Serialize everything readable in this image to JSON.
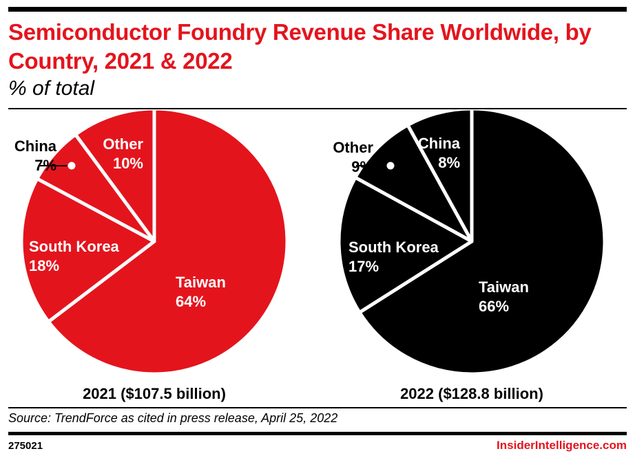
{
  "header": {
    "title": "Semiconductor Foundry Revenue Share Worldwide, by Country, 2021 & 2022",
    "subtitle": "% of total"
  },
  "chart_data": [
    {
      "type": "pie",
      "caption": "2021 ($107.5 billion)",
      "color": "#e4141d",
      "slices": [
        {
          "label": "Taiwan",
          "value": 64,
          "value_label": "64%"
        },
        {
          "label": "South Korea",
          "value": 18,
          "value_label": "18%"
        },
        {
          "label": "China",
          "value": 7,
          "value_label": "7%"
        },
        {
          "label": "Other",
          "value": 10,
          "value_label": "10%"
        }
      ]
    },
    {
      "type": "pie",
      "caption": "2022 ($128.8 billion)",
      "color": "#000000",
      "slices": [
        {
          "label": "Taiwan",
          "value": 66,
          "value_label": "66%"
        },
        {
          "label": "South Korea",
          "value": 17,
          "value_label": "17%"
        },
        {
          "label": "Other",
          "value": 9,
          "value_label": "9%"
        },
        {
          "label": "China",
          "value": 8,
          "value_label": "8%"
        }
      ]
    }
  ],
  "footer": {
    "source": "Source: TrendForce as cited in press release, April 25, 2022",
    "chart_id": "275021",
    "brand": "InsiderIntelligence.com"
  }
}
